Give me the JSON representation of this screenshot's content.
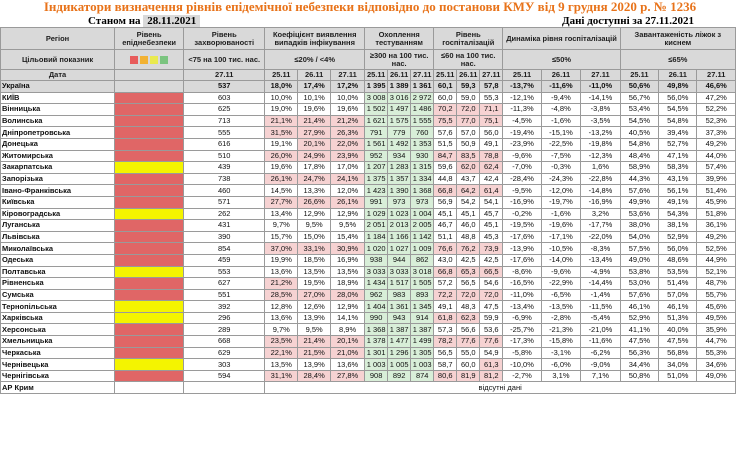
{
  "title": "Індикатори визначення рівнів епідемічної небезпеки відповідно до постанови КМУ від 9 грудня 2020 р. № 1236",
  "status_label": "Станом на",
  "status_date": "28.11.2021",
  "data_avail": "Дані доступні за 27.11.2021",
  "headers": {
    "region": "Регіон",
    "target": "Цільовий показник",
    "date": "Дата",
    "level": "Рівень епіднебезпеки",
    "incidence": "Рівень захворюваності",
    "incidence_t": "<75 на 100 тис. нас.",
    "detect": "Коефіцієнт виявлення випадків інфікування",
    "detect_t": "≤20% / <4%",
    "tests": "Охоплення тестуванням",
    "tests_t": "≥300 на 100 тис. нас.",
    "hosp": "Рівень госпіталізацій",
    "hosp_t": "≤60 на 100 тис. нас.",
    "dyn": "Динаміка рівня госпіталізацій",
    "dyn_t": "≤50%",
    "beds": "Завантаженість ліжок з киснем",
    "beds_t": "≤65%",
    "d2711": "27.11",
    "d2511": "25.11",
    "d2611": "26.11",
    "d2711b": "27.11"
  },
  "level_legend_colors": [
    "#e85c5c",
    "#f2b233",
    "#e9e94e",
    "#7bc47f"
  ],
  "row_colors": {
    "red": "#e06666",
    "yellow": "#f4f400",
    "peach": "#f6d2d2",
    "green": "#d8eed8",
    "gray": "#d9d9d9"
  },
  "rows": [
    {
      "name": "Україна",
      "level": "",
      "inc": "537",
      "det": [
        "18,0%",
        "17,4%",
        "17,2%"
      ],
      "tst": [
        "1 395",
        "1 389",
        "1 361"
      ],
      "hsp": [
        "60,1",
        "59,3",
        "57,8"
      ],
      "dyn": [
        "-13,7%",
        "-11,6%",
        "-11,0%"
      ],
      "bed": [
        "50,6%",
        "49,8%",
        "46,6%"
      ]
    },
    {
      "name": "КИЇВ",
      "level": "red",
      "inc": "603",
      "det": [
        "10,0%",
        "10,1%",
        "10,0%"
      ],
      "tst": [
        "3 008",
        "3 016",
        "2 972"
      ],
      "hsp": [
        "60,0",
        "59,0",
        "55,3"
      ],
      "dyn": [
        "-12,1%",
        "-9,4%",
        "-14,1%"
      ],
      "bed": [
        "56,7%",
        "56,0%",
        "47,2%"
      ]
    },
    {
      "name": "Вінницька",
      "level": "red",
      "inc": "625",
      "det": [
        "19,0%",
        "19,6%",
        "19,6%"
      ],
      "tst": [
        "1 502",
        "1 497",
        "1 486"
      ],
      "hsp": [
        "70,2",
        "72,0",
        "71,1"
      ],
      "dyn": [
        "-11,3%",
        "-4,8%",
        "-3,8%"
      ],
      "bed": [
        "53,4%",
        "54,5%",
        "52,2%"
      ]
    },
    {
      "name": "Волинська",
      "level": "red",
      "inc": "713",
      "det": [
        "21,1%",
        "21,4%",
        "21,2%"
      ],
      "tst": [
        "1 621",
        "1 575",
        "1 555"
      ],
      "hsp": [
        "75,5",
        "77,0",
        "75,1"
      ],
      "dyn": [
        "-4,5%",
        "-1,6%",
        "-3,5%"
      ],
      "bed": [
        "54,5%",
        "54,8%",
        "52,3%"
      ]
    },
    {
      "name": "Дніпропетровська",
      "level": "red",
      "inc": "555",
      "det": [
        "31,5%",
        "27,9%",
        "26,3%"
      ],
      "tst": [
        "791",
        "779",
        "760"
      ],
      "hsp": [
        "57,6",
        "57,0",
        "56,0"
      ],
      "dyn": [
        "-19,4%",
        "-15,1%",
        "-13,2%"
      ],
      "bed": [
        "40,5%",
        "39,4%",
        "37,3%"
      ]
    },
    {
      "name": "Донецька",
      "level": "red",
      "inc": "616",
      "det": [
        "19,1%",
        "20,1%",
        "22,0%"
      ],
      "tst": [
        "1 561",
        "1 492",
        "1 353"
      ],
      "hsp": [
        "51,5",
        "50,9",
        "49,1"
      ],
      "dyn": [
        "-23,9%",
        "-22,5%",
        "-19,8%"
      ],
      "bed": [
        "54,8%",
        "52,7%",
        "49,2%"
      ]
    },
    {
      "name": "Житомирська",
      "level": "red",
      "inc": "510",
      "det": [
        "26,0%",
        "24,9%",
        "23,9%"
      ],
      "tst": [
        "952",
        "934",
        "930"
      ],
      "hsp": [
        "84,7",
        "83,5",
        "78,8"
      ],
      "dyn": [
        "-9,6%",
        "-7,5%",
        "-12,3%"
      ],
      "bed": [
        "48,4%",
        "47,1%",
        "44,0%"
      ]
    },
    {
      "name": "Закарпатська",
      "level": "yellow",
      "inc": "439",
      "det": [
        "19,6%",
        "17,8%",
        "17,0%"
      ],
      "tst": [
        "1 207",
        "1 283",
        "1 315"
      ],
      "hsp": [
        "59,6",
        "62,0",
        "62,4"
      ],
      "dyn": [
        "-7,0%",
        "-0,3%",
        "1,6%"
      ],
      "bed": [
        "58,9%",
        "58,3%",
        "57,4%"
      ]
    },
    {
      "name": "Запорізька",
      "level": "red",
      "inc": "738",
      "det": [
        "26,1%",
        "24,7%",
        "24,1%"
      ],
      "tst": [
        "1 375",
        "1 357",
        "1 334"
      ],
      "hsp": [
        "44,8",
        "43,7",
        "42,4"
      ],
      "dyn": [
        "-28,4%",
        "-24,3%",
        "-22,8%"
      ],
      "bed": [
        "44,3%",
        "43,1%",
        "39,9%"
      ]
    },
    {
      "name": "Івано-Франківська",
      "level": "red",
      "inc": "460",
      "det": [
        "14,5%",
        "13,3%",
        "12,0%"
      ],
      "tst": [
        "1 423",
        "1 390",
        "1 368"
      ],
      "hsp": [
        "66,8",
        "64,2",
        "61,4"
      ],
      "dyn": [
        "-9,5%",
        "-12,0%",
        "-14,8%"
      ],
      "bed": [
        "57,6%",
        "56,1%",
        "51,4%"
      ]
    },
    {
      "name": "Київська",
      "level": "red",
      "inc": "571",
      "det": [
        "27,7%",
        "26,6%",
        "26,1%"
      ],
      "tst": [
        "991",
        "973",
        "973"
      ],
      "hsp": [
        "56,9",
        "54,2",
        "54,1"
      ],
      "dyn": [
        "-16,9%",
        "-19,7%",
        "-16,9%"
      ],
      "bed": [
        "49,9%",
        "49,1%",
        "45,9%"
      ]
    },
    {
      "name": "Кіровоградська",
      "level": "yellow",
      "inc": "262",
      "det": [
        "13,4%",
        "12,9%",
        "12,9%"
      ],
      "tst": [
        "1 029",
        "1 023",
        "1 004"
      ],
      "hsp": [
        "45,1",
        "45,1",
        "45,7"
      ],
      "dyn": [
        "-0,2%",
        "-1,6%",
        "3,2%"
      ],
      "bed": [
        "53,6%",
        "54,3%",
        "51,8%"
      ]
    },
    {
      "name": "Луганська",
      "level": "red",
      "inc": "431",
      "det": [
        "9,7%",
        "9,5%",
        "9,5%"
      ],
      "tst": [
        "2 051",
        "2 013",
        "2 005"
      ],
      "hsp": [
        "46,7",
        "46,0",
        "45,1"
      ],
      "dyn": [
        "-19,5%",
        "-19,6%",
        "-17,7%"
      ],
      "bed": [
        "38,0%",
        "38,1%",
        "36,1%"
      ]
    },
    {
      "name": "Львівська",
      "level": "red",
      "inc": "390",
      "det": [
        "15,7%",
        "15,0%",
        "15,4%"
      ],
      "tst": [
        "1 184",
        "1 166",
        "1 142"
      ],
      "hsp": [
        "51,1",
        "48,8",
        "45,3"
      ],
      "dyn": [
        "-17,6%",
        "-17,1%",
        "-22,0%"
      ],
      "bed": [
        "54,0%",
        "52,9%",
        "49,2%"
      ]
    },
    {
      "name": "Миколаївська",
      "level": "red",
      "inc": "854",
      "det": [
        "37,0%",
        "33,1%",
        "30,9%"
      ],
      "tst": [
        "1 020",
        "1 027",
        "1 009"
      ],
      "hsp": [
        "76,6",
        "76,2",
        "73,9"
      ],
      "dyn": [
        "-13,9%",
        "-10,5%",
        "-8,3%"
      ],
      "bed": [
        "57,5%",
        "56,0%",
        "52,5%"
      ]
    },
    {
      "name": "Одеська",
      "level": "red",
      "inc": "459",
      "det": [
        "19,9%",
        "18,5%",
        "16,9%"
      ],
      "tst": [
        "938",
        "944",
        "862"
      ],
      "hsp": [
        "43,0",
        "42,5",
        "42,5"
      ],
      "dyn": [
        "-17,6%",
        "-14,0%",
        "-13,4%"
      ],
      "bed": [
        "49,0%",
        "48,6%",
        "44,9%"
      ]
    },
    {
      "name": "Полтавська",
      "level": "yellow",
      "inc": "553",
      "det": [
        "13,6%",
        "13,5%",
        "13,5%"
      ],
      "tst": [
        "3 033",
        "3 033",
        "3 018"
      ],
      "hsp": [
        "66,8",
        "65,3",
        "66,5"
      ],
      "dyn": [
        "-8,6%",
        "-9,6%",
        "-4,9%"
      ],
      "bed": [
        "53,8%",
        "53,5%",
        "52,1%"
      ]
    },
    {
      "name": "Рівненська",
      "level": "red",
      "inc": "627",
      "det": [
        "21,2%",
        "19,5%",
        "18,9%"
      ],
      "tst": [
        "1 434",
        "1 517",
        "1 505"
      ],
      "hsp": [
        "57,2",
        "56,5",
        "54,6"
      ],
      "dyn": [
        "-16,5%",
        "-22,9%",
        "-14,4%"
      ],
      "bed": [
        "53,0%",
        "51,4%",
        "48,7%"
      ]
    },
    {
      "name": "Сумська",
      "level": "red",
      "inc": "551",
      "det": [
        "28,5%",
        "27,0%",
        "28,0%"
      ],
      "tst": [
        "962",
        "983",
        "893"
      ],
      "hsp": [
        "72,2",
        "72,0",
        "72,0"
      ],
      "dyn": [
        "-11,0%",
        "-6,5%",
        "-1,4%"
      ],
      "bed": [
        "57,6%",
        "57,0%",
        "55,7%"
      ]
    },
    {
      "name": "Тернопільська",
      "level": "yellow",
      "inc": "392",
      "det": [
        "12,8%",
        "12,6%",
        "12,9%"
      ],
      "tst": [
        "1 404",
        "1 361",
        "1 345"
      ],
      "hsp": [
        "49,1",
        "48,3",
        "47,5"
      ],
      "dyn": [
        "-13,4%",
        "-13,5%",
        "-11,5%"
      ],
      "bed": [
        "46,1%",
        "46,1%",
        "45,6%"
      ]
    },
    {
      "name": "Харківська",
      "level": "yellow",
      "inc": "296",
      "det": [
        "13,6%",
        "13,9%",
        "14,1%"
      ],
      "tst": [
        "990",
        "943",
        "914"
      ],
      "hsp": [
        "61,8",
        "62,3",
        "59,9"
      ],
      "dyn": [
        "-6,9%",
        "-2,8%",
        "-5,4%"
      ],
      "bed": [
        "52,9%",
        "51,3%",
        "49,5%"
      ]
    },
    {
      "name": "Херсонська",
      "level": "red",
      "inc": "289",
      "det": [
        "9,7%",
        "9,5%",
        "8,9%"
      ],
      "tst": [
        "1 368",
        "1 387",
        "1 387"
      ],
      "hsp": [
        "57,3",
        "56,6",
        "53,6"
      ],
      "dyn": [
        "-25,7%",
        "-21,3%",
        "-21,0%"
      ],
      "bed": [
        "41,1%",
        "40,0%",
        "35,9%"
      ]
    },
    {
      "name": "Хмельницька",
      "level": "red",
      "inc": "668",
      "det": [
        "23,5%",
        "21,4%",
        "20,1%"
      ],
      "tst": [
        "1 378",
        "1 477",
        "1 499"
      ],
      "hsp": [
        "78,2",
        "77,6",
        "77,6"
      ],
      "dyn": [
        "-17,3%",
        "-15,8%",
        "-11,6%"
      ],
      "bed": [
        "47,5%",
        "47,5%",
        "44,7%"
      ]
    },
    {
      "name": "Черкаська",
      "level": "red",
      "inc": "629",
      "det": [
        "22,1%",
        "21,5%",
        "21,0%"
      ],
      "tst": [
        "1 301",
        "1 296",
        "1 305"
      ],
      "hsp": [
        "56,5",
        "55,0",
        "54,9"
      ],
      "dyn": [
        "-5,8%",
        "-3,1%",
        "-6,2%"
      ],
      "bed": [
        "56,3%",
        "56,8%",
        "55,3%"
      ]
    },
    {
      "name": "Чернівецька",
      "level": "yellow",
      "inc": "303",
      "det": [
        "13,5%",
        "13,9%",
        "13,6%"
      ],
      "tst": [
        "1 003",
        "1 005",
        "1 003"
      ],
      "hsp": [
        "58,7",
        "60,0",
        "61,3"
      ],
      "dyn": [
        "-10,0%",
        "-6,0%",
        "-9,0%"
      ],
      "bed": [
        "34,4%",
        "34,0%",
        "34,6%"
      ]
    },
    {
      "name": "Чернігівська",
      "level": "red",
      "inc": "594",
      "det": [
        "31,1%",
        "28,4%",
        "27,8%"
      ],
      "tst": [
        "908",
        "892",
        "874"
      ],
      "hsp": [
        "80,6",
        "81,9",
        "81,2"
      ],
      "dyn": [
        "-2,7%",
        "3,1%",
        "7,1%"
      ],
      "bed": [
        "50,8%",
        "51,0%",
        "49,0%"
      ]
    },
    {
      "name": "АР Крим",
      "level": "",
      "na": "відсутні дані"
    }
  ]
}
